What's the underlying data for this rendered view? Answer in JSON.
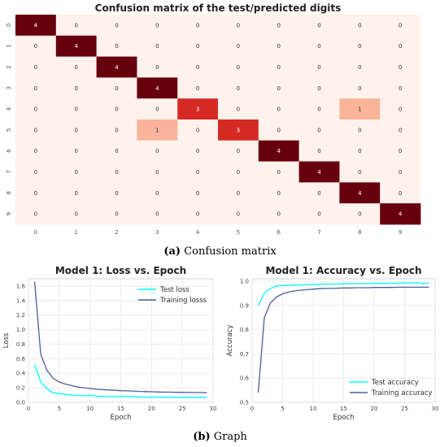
{
  "chart_data": [
    {
      "type": "heatmap",
      "title": "Confusion matrix of the test/predicted digits",
      "row_labels": [
        "0",
        "1",
        "2",
        "3",
        "4",
        "5",
        "6",
        "7",
        "8",
        "9"
      ],
      "col_labels": [
        "0",
        "1",
        "2",
        "3",
        "4",
        "5",
        "6",
        "7",
        "8",
        "9"
      ],
      "values": [
        [
          4,
          0,
          0,
          0,
          0,
          0,
          0,
          0,
          0,
          0
        ],
        [
          0,
          4,
          0,
          0,
          0,
          0,
          0,
          0,
          0,
          0
        ],
        [
          0,
          0,
          4,
          0,
          0,
          0,
          0,
          0,
          0,
          0
        ],
        [
          0,
          0,
          0,
          4,
          0,
          0,
          0,
          0,
          0,
          0
        ],
        [
          0,
          0,
          0,
          0,
          3,
          0,
          0,
          0,
          1,
          0
        ],
        [
          0,
          0,
          0,
          1,
          0,
          3,
          0,
          0,
          0,
          0
        ],
        [
          0,
          0,
          0,
          0,
          0,
          0,
          4,
          0,
          0,
          0
        ],
        [
          0,
          0,
          0,
          0,
          0,
          0,
          0,
          4,
          0,
          0
        ],
        [
          0,
          0,
          0,
          0,
          0,
          0,
          0,
          0,
          4,
          0
        ],
        [
          0,
          0,
          0,
          0,
          0,
          0,
          0,
          0,
          0,
          4
        ]
      ],
      "colors": {
        "zero": "#fff1ec",
        "one": "#fbb39a",
        "three": "#d52a24",
        "four": "#67000d"
      }
    },
    {
      "type": "line",
      "title": "Model 1: Loss vs. Epoch",
      "xlabel": "Epoch",
      "ylabel": "Loss",
      "xlim": [
        0,
        30
      ],
      "ylim": [
        0,
        1.7
      ],
      "xticks": [
        "0",
        "5",
        "10",
        "15",
        "20",
        "25",
        "30"
      ],
      "yticks": [
        "0.0",
        "0.2",
        "0.4",
        "0.6",
        "0.8",
        "1.0",
        "1.2",
        "1.4",
        "1.6"
      ],
      "grid": true,
      "legend_position": "top-right",
      "x": [
        1,
        2,
        3,
        4,
        5,
        6,
        7,
        8,
        9,
        10,
        11,
        12,
        13,
        14,
        15,
        16,
        17,
        18,
        19,
        20,
        21,
        22,
        23,
        24,
        25,
        26,
        27,
        28,
        29
      ],
      "series": [
        {
          "name": "Test loss",
          "color": "#00ffff",
          "values": [
            0.52,
            0.28,
            0.19,
            0.13,
            0.12,
            0.11,
            0.1,
            0.095,
            0.09,
            0.1,
            0.085,
            0.08,
            0.08,
            0.08,
            0.075,
            0.085,
            0.075,
            0.075,
            0.07,
            0.07,
            0.07,
            0.07,
            0.07,
            0.07,
            0.065,
            0.07,
            0.065,
            0.07,
            0.065
          ]
        },
        {
          "name": "Training losss",
          "color": "#4e5b9c",
          "values": [
            1.66,
            0.66,
            0.44,
            0.33,
            0.28,
            0.25,
            0.23,
            0.21,
            0.2,
            0.19,
            0.18,
            0.175,
            0.17,
            0.165,
            0.16,
            0.158,
            0.155,
            0.15,
            0.148,
            0.145,
            0.142,
            0.14,
            0.14,
            0.138,
            0.136,
            0.135,
            0.134,
            0.134,
            0.133
          ]
        }
      ]
    },
    {
      "type": "line",
      "title": "Model 1: Accuracy vs. Epoch",
      "xlabel": "Epoch",
      "ylabel": "Accuracy",
      "xlim": [
        0,
        30
      ],
      "ylim": [
        0.5,
        1.01
      ],
      "xticks": [
        "0",
        "5",
        "10",
        "15",
        "20",
        "25",
        "30"
      ],
      "yticks": [
        "0.5",
        "0.6",
        "0.7",
        "0.8",
        "0.9",
        "1.0"
      ],
      "grid": true,
      "legend_position": "bottom-right",
      "x": [
        1,
        2,
        3,
        4,
        5,
        6,
        7,
        8,
        9,
        10,
        11,
        12,
        13,
        14,
        15,
        16,
        17,
        18,
        19,
        20,
        21,
        22,
        23,
        24,
        25,
        26,
        27,
        28,
        29
      ],
      "series": [
        {
          "name": "Test accuracy",
          "color": "#00ffff",
          "values": [
            0.9,
            0.95,
            0.97,
            0.98,
            0.982,
            0.983,
            0.984,
            0.985,
            0.986,
            0.986,
            0.987,
            0.988,
            0.988,
            0.989,
            0.989,
            0.99,
            0.99,
            0.99,
            0.99,
            0.991,
            0.991,
            0.991,
            0.992,
            0.992,
            0.993,
            0.993,
            0.994,
            0.99,
            0.993
          ]
        },
        {
          "name": "Training accuracy",
          "color": "#4e5b9c",
          "values": [
            0.54,
            0.85,
            0.91,
            0.935,
            0.948,
            0.955,
            0.96,
            0.963,
            0.965,
            0.967,
            0.969,
            0.97,
            0.97,
            0.971,
            0.972,
            0.972,
            0.973,
            0.973,
            0.973,
            0.974,
            0.974,
            0.974,
            0.974,
            0.975,
            0.975,
            0.975,
            0.975,
            0.975,
            0.975
          ]
        }
      ]
    }
  ],
  "captions": {
    "a_label": "(a)",
    "a_text": "Confusion matrix",
    "b_label": "(b)",
    "b_text": "Graph"
  }
}
